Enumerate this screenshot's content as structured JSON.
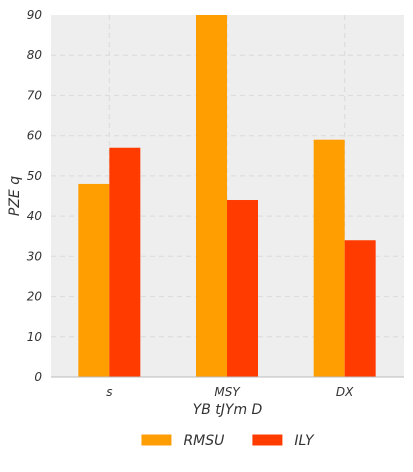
{
  "chart_data": {
    "type": "bar",
    "categories": [
      "s",
      "MSY",
      "DX"
    ],
    "series": [
      {
        "name": "RMSU",
        "values": [
          48,
          90,
          59
        ]
      },
      {
        "name": "ILY",
        "values": [
          57,
          44,
          34
        ]
      }
    ],
    "xlabel": "YB tJYm D",
    "ylabel": "PZE q",
    "ylim": [
      0,
      90
    ],
    "yticks": [
      0,
      10,
      20,
      30,
      40,
      50,
      60,
      70,
      80,
      90
    ],
    "grid": true,
    "legend_position": "bottom-center",
    "colors": {
      "series": [
        "#ff9e00",
        "#ff3b00"
      ],
      "plot_background": "#eeeeee",
      "grid": "#dddddd",
      "axis": "#bbbbbb"
    }
  }
}
